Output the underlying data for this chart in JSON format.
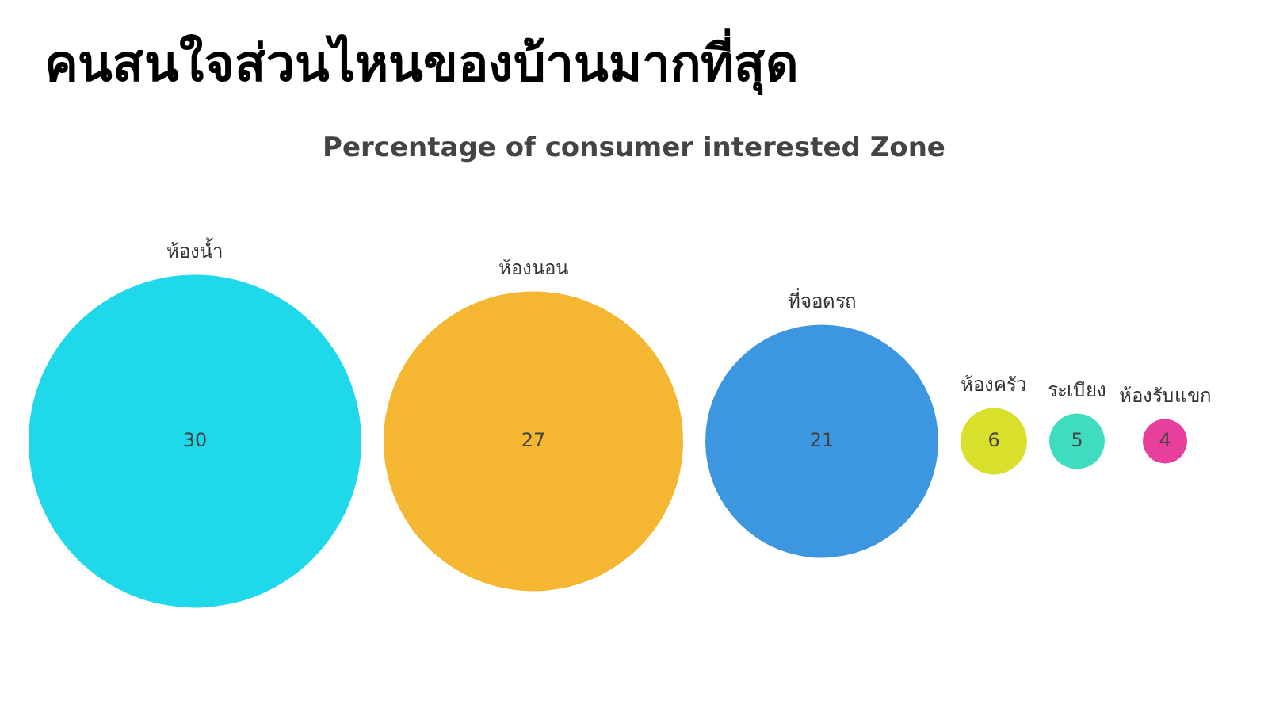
{
  "chart_data": {
    "type": "other",
    "title": "คนสนใจส่วนไหนของบ้านมากที่สุด",
    "subtitle": "Percentage of consumer interested Zone",
    "categories": [
      "ห้องน้ำ",
      "ห้องนอน",
      "ที่จอดรถ",
      "ห้องครัว",
      "ระเบียง",
      "ห้องรับแขก"
    ],
    "values": [
      30,
      27,
      21,
      6,
      5,
      4
    ],
    "colors": [
      "#1fd8ea",
      "#f5b731",
      "#3c97e0",
      "#d8e02c",
      "#3fdcc0",
      "#e83e9c"
    ],
    "data_labels": true,
    "legend": false
  }
}
